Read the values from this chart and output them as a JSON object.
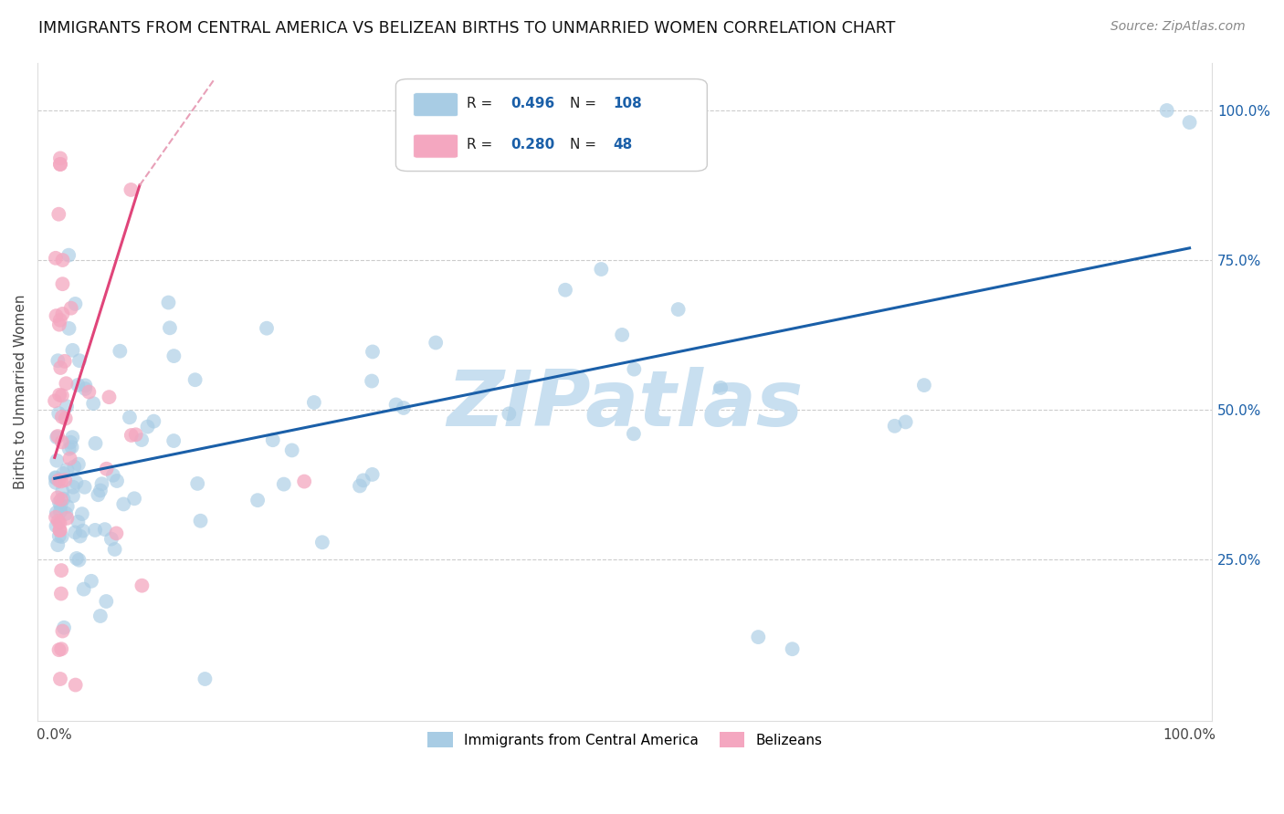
{
  "title": "IMMIGRANTS FROM CENTRAL AMERICA VS BELIZEAN BIRTHS TO UNMARRIED WOMEN CORRELATION CHART",
  "source": "Source: ZipAtlas.com",
  "ylabel": "Births to Unmarried Women",
  "blue_R": 0.496,
  "blue_N": 108,
  "pink_R": 0.28,
  "pink_N": 48,
  "blue_color": "#a8cce4",
  "pink_color": "#f4a7c0",
  "blue_line_color": "#1a5fa8",
  "pink_line_color": "#e0457a",
  "pink_dash_color": "#e8a0b8",
  "watermark": "ZIPatlas",
  "watermark_color": "#c8dff0",
  "legend_blue_color": "#1a5fa8",
  "legend_pink_color": "#e0457a",
  "legend_text_color": "#1a5fa8",
  "legend_N_color": "#1a5fa8"
}
